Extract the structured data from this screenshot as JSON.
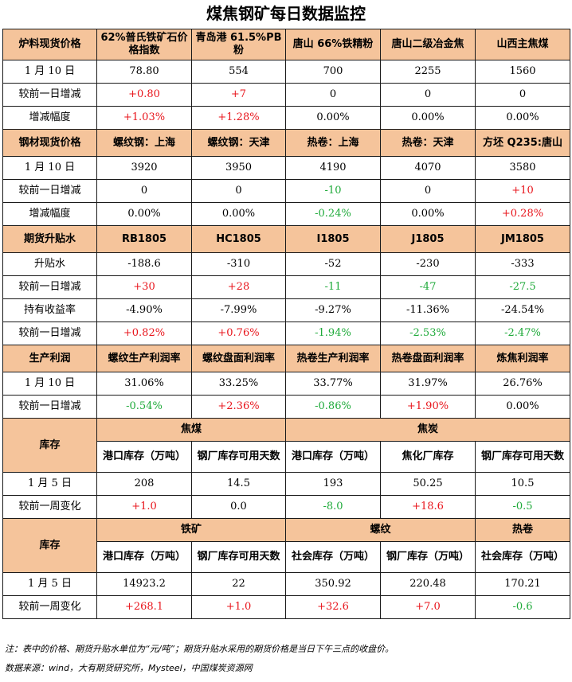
{
  "title": "煤焦钢矿每日数据监控",
  "colors": {
    "header_bg": "#f5c49b",
    "up": "#e8141b",
    "down": "#1faa3a"
  },
  "s1": {
    "header": [
      "炉料现货价格",
      "62%普氏铁矿石价格指数",
      "青岛港 61.5%PB 粉",
      "唐山 66%铁精粉",
      "唐山二级冶金焦",
      "山西主焦煤"
    ],
    "rows": [
      {
        "label": "1 月 10 日",
        "values": [
          "78.80",
          "554",
          "700",
          "2255",
          "1560"
        ],
        "colors": [
          "black",
          "black",
          "black",
          "black",
          "black"
        ]
      },
      {
        "label": "较前一日增减",
        "values": [
          "+0.80",
          "+7",
          "0",
          "0",
          "0"
        ],
        "colors": [
          "red",
          "red",
          "black",
          "black",
          "black"
        ]
      },
      {
        "label": "增减幅度",
        "values": [
          "+1.03%",
          "+1.28%",
          "0.00%",
          "0.00%",
          "0.00%"
        ],
        "colors": [
          "red",
          "red",
          "black",
          "black",
          "black"
        ]
      }
    ]
  },
  "s2": {
    "header": [
      "钢材现货价格",
      "螺纹钢：上海",
      "螺纹钢：天津",
      "热卷：上海",
      "热卷：天津",
      "方坯 Q235:唐山"
    ],
    "rows": [
      {
        "label": "1 月 10 日",
        "values": [
          "3920",
          "3950",
          "4190",
          "4070",
          "3580"
        ],
        "colors": [
          "black",
          "black",
          "black",
          "black",
          "black"
        ]
      },
      {
        "label": "较前一日增减",
        "values": [
          "0",
          "0",
          "-10",
          "0",
          "+10"
        ],
        "colors": [
          "black",
          "black",
          "green",
          "black",
          "red"
        ]
      },
      {
        "label": "增减幅度",
        "values": [
          "0.00%",
          "0.00%",
          "-0.24%",
          "0.00%",
          "+0.28%"
        ],
        "colors": [
          "black",
          "black",
          "green",
          "black",
          "red"
        ]
      }
    ]
  },
  "s3": {
    "header": [
      "期货升贴水",
      "RB1805",
      "HC1805",
      "I1805",
      "J1805",
      "JM1805"
    ],
    "rows": [
      {
        "label": "升贴水",
        "values": [
          "-188.6",
          "-310",
          "-52",
          "-230",
          "-333"
        ],
        "colors": [
          "black",
          "black",
          "black",
          "black",
          "black"
        ]
      },
      {
        "label": "较前一日增减",
        "values": [
          "+30",
          "+28",
          "-11",
          "-47",
          "-27.5"
        ],
        "colors": [
          "red",
          "red",
          "green",
          "green",
          "green"
        ]
      },
      {
        "label": "持有收益率",
        "values": [
          "-4.90%",
          "-7.99%",
          "-9.27%",
          "-11.36%",
          "-24.54%"
        ],
        "colors": [
          "black",
          "black",
          "black",
          "black",
          "black"
        ]
      },
      {
        "label": "较前一日增减",
        "values": [
          "+0.82%",
          "+0.76%",
          "-1.94%",
          "-2.53%",
          "-2.47%"
        ],
        "colors": [
          "red",
          "red",
          "green",
          "green",
          "green"
        ]
      }
    ]
  },
  "s4": {
    "header": [
      "生产利润",
      "螺纹生产利润率",
      "螺纹盘面利润率",
      "热卷生产利润率",
      "热卷盘面利润率",
      "炼焦利润率"
    ],
    "rows": [
      {
        "label": "1 月 10 日",
        "values": [
          "31.06%",
          "33.25%",
          "33.77%",
          "31.97%",
          "26.76%"
        ],
        "colors": [
          "black",
          "black",
          "black",
          "black",
          "black"
        ]
      },
      {
        "label": "较前一日增减",
        "values": [
          "-0.54%",
          "+2.36%",
          "-0.86%",
          "+1.90%",
          "0.00%"
        ],
        "colors": [
          "green",
          "red",
          "green",
          "red",
          "black"
        ]
      }
    ]
  },
  "s5": {
    "label": "库存",
    "groups": [
      "焦煤",
      "焦炭"
    ],
    "sub": [
      "港口库存（万吨）",
      "钢厂库存可用天数",
      "港口库存（万吨）",
      "焦化厂库存",
      "钢厂库存可用天数"
    ],
    "rows": [
      {
        "label": "1 月 5 日",
        "values": [
          "208",
          "14.5",
          "193",
          "50.25",
          "10.5"
        ],
        "colors": [
          "black",
          "black",
          "black",
          "black",
          "black"
        ]
      },
      {
        "label": "较前一周变化",
        "values": [
          "+1.0",
          "0.0",
          "-8.0",
          "+18.6",
          "-0.5"
        ],
        "colors": [
          "red",
          "black",
          "green",
          "red",
          "green"
        ]
      }
    ]
  },
  "s6": {
    "label": "库存",
    "groups": [
      "铁矿",
      "螺纹",
      "热卷"
    ],
    "sub": [
      "港口库存（万吨）",
      "钢厂库存可用天数",
      "社会库存（万吨）",
      "钢厂库存（万吨）",
      "社会库存（万吨）"
    ],
    "rows": [
      {
        "label": "1 月 5 日",
        "values": [
          "14923.2",
          "22",
          "350.92",
          "220.48",
          "170.21"
        ],
        "colors": [
          "black",
          "black",
          "black",
          "black",
          "black"
        ]
      },
      {
        "label": "较前一周变化",
        "values": [
          "+268.1",
          "+1.0",
          "+32.6",
          "+7.0",
          "-0.6"
        ],
        "colors": [
          "red",
          "red",
          "red",
          "red",
          "green"
        ]
      }
    ]
  },
  "notes": [
    "注：表中的价格、期货升贴水单位为“元/吨”；期货升贴水采用的期货价格是当日下午三点的收盘价。",
    "数据来源：wind，大有期货研究所，Mysteel，中国煤炭资源网"
  ]
}
